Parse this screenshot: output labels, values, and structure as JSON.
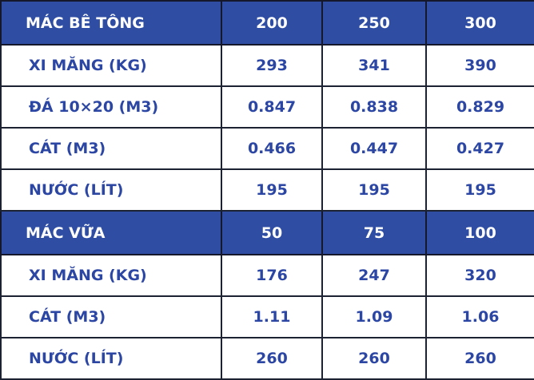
{
  "table": {
    "rows": [
      [
        "MÁC BÊ TÔNG",
        "200",
        "250",
        "300"
      ],
      [
        "XI MĂNG (KG)",
        "293",
        "341",
        "390"
      ],
      [
        "ĐÁ 10×20 (M3)",
        "0.847",
        "0.838",
        "0.829"
      ],
      [
        "CÁT (M3)",
        "0.466",
        "0.447",
        "0.427"
      ],
      [
        "NƯỚC (LÍT)",
        "195",
        "195",
        "195"
      ],
      [
        "MÁC VỮA",
        "50",
        "75",
        "100"
      ],
      [
        "XI MĂNG (KG)",
        "176",
        "247",
        "320"
      ],
      [
        "CÁT (M3)",
        "1.11",
        "1.09",
        "1.06"
      ],
      [
        "NƯỚC (LÍT)",
        "260",
        "260",
        "260"
      ]
    ]
  }
}
